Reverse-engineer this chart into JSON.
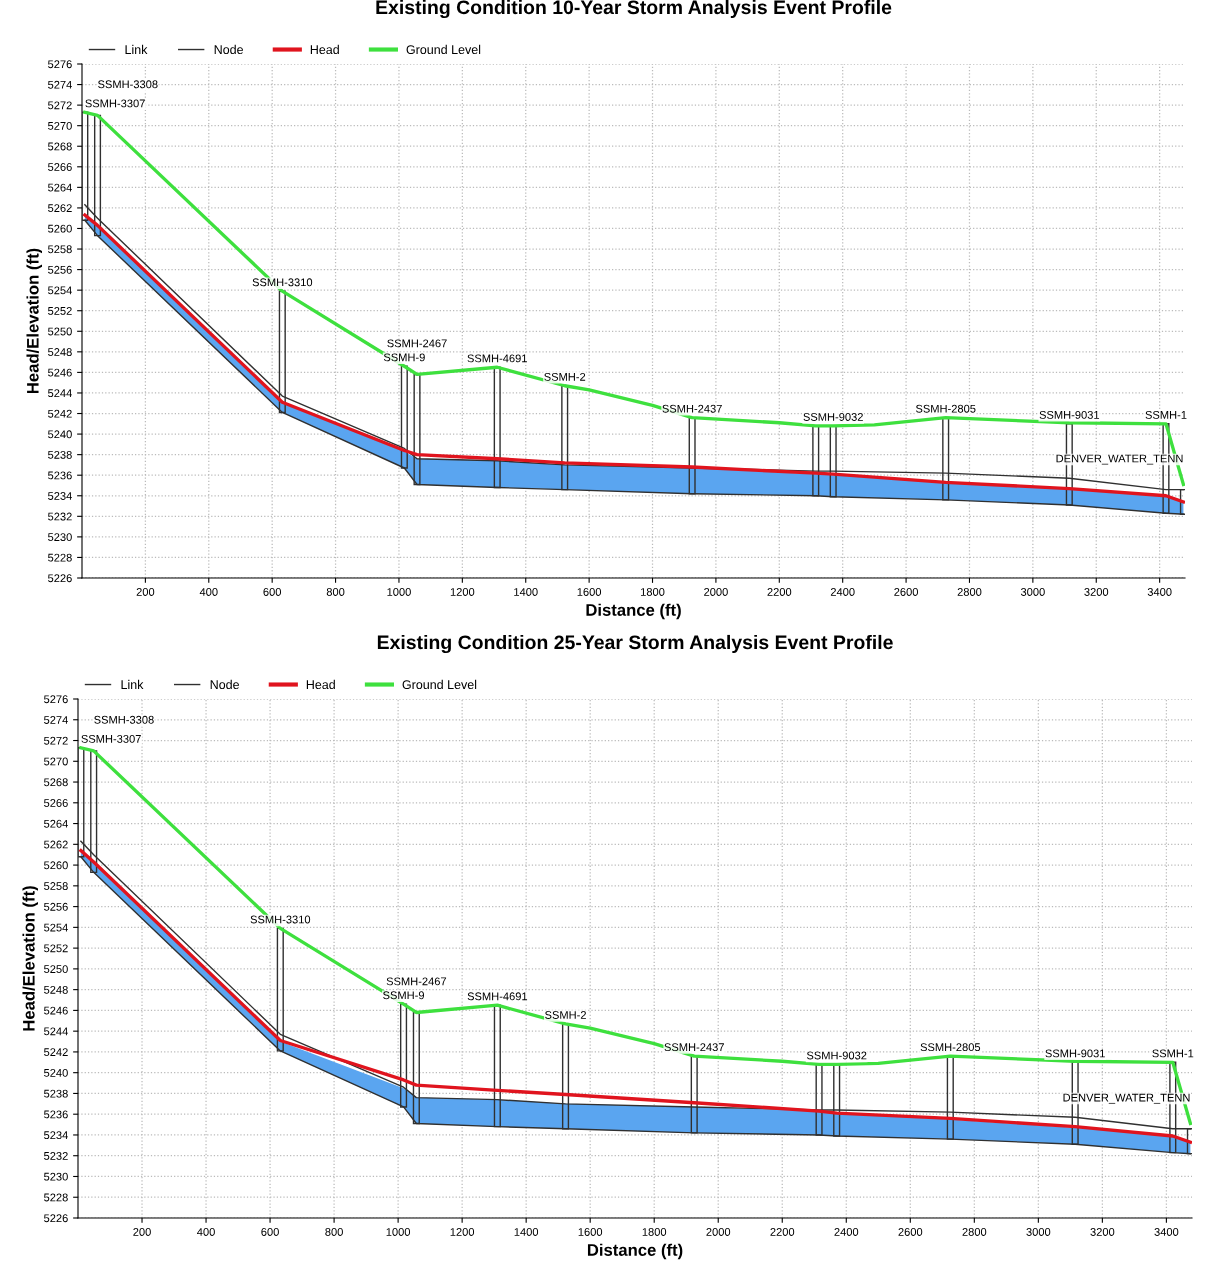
{
  "chart_data": [
    {
      "type": "line",
      "title": "Existing Condition 10-Year Storm Analysis Event Profile",
      "xlabel": "Distance (ft)",
      "ylabel": "Head/Elevation (ft)",
      "x": [
        9,
        49,
        632,
        1017,
        1057,
        1310,
        1523,
        1925,
        2315,
        2370,
        2725,
        3115,
        3420,
        3475
      ],
      "series": [
        {
          "color": "#303030",
          "values": [
            5260.8,
            5259.3,
            5242.1,
            5236.7,
            5235.1,
            5234.8,
            5234.6,
            5234.2,
            5234.0,
            5233.9,
            5233.6,
            5233.1,
            5232.3,
            5232.2
          ],
          "lower": [
            5260.8,
            5259.3,
            5242.1,
            5236.7,
            5235.1,
            5234.8,
            5234.6,
            5234.2,
            5234.0,
            5233.9,
            5233.6,
            5233.1,
            5232.3,
            5232.2
          ],
          "upper": [
            5261.2,
            5260.2,
            5243.0,
            5238.3,
            5237.6,
            5237.4,
            5237.0,
            5236.7,
            5236.1,
            5236.0,
            5235.3,
            5234.6,
            5233.9,
            5233.4
          ]
        },
        {
          "name": "Link",
          "color": "#303030",
          "values": [
            5262.3,
            5261.0,
            5243.7,
            5238.6,
            5237.6,
            5237.4,
            5237.0,
            5236.7,
            5236.4,
            5236.4,
            5236.2,
            5235.7,
            5234.6,
            5234.6
          ]
        },
        {
          "name": "Node",
          "type": "bar",
          "color": "#303030",
          "base": [
            5260.8,
            5259.3,
            5242.1,
            5236.7,
            5235.1,
            5234.8,
            5234.6,
            5234.2,
            5234.0,
            5233.9,
            5233.6,
            5233.1,
            5232.3,
            5232.2
          ],
          "values": [
            10.5,
            11.7,
            11.8,
            9.9,
            10.7,
            11.7,
            10.1,
            7.4,
            6.8,
            6.9,
            8.0,
            7.9,
            8.7,
            2.4
          ]
        },
        {
          "name": "Head",
          "color": "#e0141e",
          "values": [
            5261.3,
            5260.3,
            5243.1,
            5238.4,
            5238.0,
            5237.6,
            5237.2,
            5236.8,
            5236.2,
            5236.1,
            5235.3,
            5234.7,
            5234.0,
            5233.4
          ]
        },
        {
          "name": "Ground Level",
          "color": "#3ee03e",
          "x": [
            9,
            49,
            632,
            1017,
            1057,
            1310,
            1523,
            1600,
            1800,
            1925,
            2200,
            2315,
            2370,
            2500,
            2725,
            3115,
            3420,
            3475
          ],
          "values": [
            5271.3,
            5271.0,
            5253.9,
            5246.6,
            5245.8,
            5246.5,
            5244.7,
            5244.3,
            5242.8,
            5241.6,
            5241.1,
            5240.8,
            5240.8,
            5240.9,
            5241.6,
            5241.1,
            5241.0,
            5235.1
          ]
        }
      ],
      "annotations": [
        {
          "text": "SSMH-3307",
          "x": 9,
          "y": 5271.3
        },
        {
          "text": "SSMH-3308",
          "x": 49,
          "y": 5271.0
        },
        {
          "text": "SSMH-3310",
          "x": 632,
          "y": 5253.9
        },
        {
          "text": "SSMH-9",
          "x": 1017,
          "y": 5246.6
        },
        {
          "text": "SSMH-2467",
          "x": 1057,
          "y": 5245.8
        },
        {
          "text": "SSMH-4691",
          "x": 1310,
          "y": 5246.5
        },
        {
          "text": "SSMH-2",
          "x": 1523,
          "y": 5244.7
        },
        {
          "text": "SSMH-2437",
          "x": 1925,
          "y": 5241.6
        },
        {
          "text": "SSMH-9032",
          "x": 2370,
          "y": 5240.8
        },
        {
          "text": "SSMH-2805",
          "x": 2725,
          "y": 5241.6
        },
        {
          "text": "SSMH-9031",
          "x": 3115,
          "y": 5241.0
        },
        {
          "text": "SSMH-1",
          "x": 3420,
          "y": 5241.0
        },
        {
          "text": "DENVER_WATER_TENN",
          "x": 3475,
          "y": 5234.6
        }
      ],
      "xlim": [
        0,
        3480
      ],
      "xticks": [
        200,
        400,
        600,
        800,
        1000,
        1200,
        1400,
        1600,
        1800,
        2000,
        2200,
        2400,
        2600,
        2800,
        3000,
        3200,
        3400
      ],
      "ylim": [
        5226,
        5276
      ],
      "yticks": [
        5226,
        5228,
        5230,
        5232,
        5234,
        5236,
        5238,
        5240,
        5242,
        5244,
        5246,
        5248,
        5250,
        5252,
        5254,
        5256,
        5258,
        5260,
        5262,
        5264,
        5266,
        5268,
        5270,
        5272,
        5274,
        5276
      ],
      "grid": true,
      "legend": "top left"
    },
    {
      "type": "line",
      "title": "Existing Condition 25-Year Storm Analysis Event Profile",
      "xlabel": "Distance (ft)",
      "ylabel": "Head/Elevation (ft)",
      "x": [
        9,
        49,
        632,
        1017,
        1057,
        1310,
        1523,
        1925,
        2315,
        2370,
        2725,
        3115,
        3420,
        3475
      ],
      "series": [
        {
          "color": "#303030",
          "values": [
            5260.8,
            5259.3,
            5242.1,
            5236.7,
            5235.1,
            5234.8,
            5234.6,
            5234.2,
            5234.0,
            5233.9,
            5233.6,
            5233.1,
            5232.3,
            5232.2
          ],
          "lower": [
            5260.8,
            5259.3,
            5242.1,
            5236.7,
            5235.1,
            5234.8,
            5234.6,
            5234.2,
            5234.0,
            5233.9,
            5233.6,
            5233.1,
            5232.3,
            5232.2
          ],
          "upper": [
            5261.2,
            5260.2,
            5243.0,
            5238.5,
            5237.6,
            5237.4,
            5237.0,
            5236.7,
            5236.3,
            5236.1,
            5235.5,
            5234.7,
            5233.9,
            5233.3
          ]
        },
        {
          "name": "Link",
          "color": "#303030",
          "values": [
            5262.3,
            5261.0,
            5243.7,
            5238.6,
            5237.6,
            5237.4,
            5237.0,
            5236.7,
            5236.4,
            5236.4,
            5236.2,
            5235.7,
            5234.6,
            5234.6
          ]
        },
        {
          "name": "Node",
          "type": "bar",
          "color": "#303030",
          "base": [
            5260.8,
            5259.3,
            5242.1,
            5236.7,
            5235.1,
            5234.8,
            5234.6,
            5234.2,
            5234.0,
            5233.9,
            5233.6,
            5233.1,
            5232.3,
            5232.2
          ],
          "values": [
            10.5,
            11.7,
            11.8,
            9.9,
            10.7,
            11.7,
            10.1,
            7.4,
            6.8,
            6.9,
            8.0,
            7.9,
            8.7,
            2.4
          ]
        },
        {
          "name": "Head",
          "color": "#e0141e",
          "values": [
            5261.4,
            5260.3,
            5243.1,
            5239.3,
            5238.8,
            5238.3,
            5237.9,
            5237.1,
            5236.3,
            5236.1,
            5235.6,
            5234.8,
            5233.9,
            5233.3
          ]
        },
        {
          "name": "Ground Level",
          "color": "#3ee03e",
          "x": [
            9,
            49,
            632,
            1017,
            1057,
            1310,
            1523,
            1600,
            1800,
            1925,
            2200,
            2315,
            2370,
            2500,
            2725,
            3115,
            3420,
            3475
          ],
          "values": [
            5271.3,
            5271.0,
            5253.9,
            5246.6,
            5245.8,
            5246.5,
            5244.7,
            5244.3,
            5242.8,
            5241.6,
            5241.1,
            5240.8,
            5240.8,
            5240.9,
            5241.6,
            5241.1,
            5241.0,
            5235.1
          ]
        }
      ],
      "annotations": [
        {
          "text": "SSMH-3307",
          "x": 9,
          "y": 5271.3
        },
        {
          "text": "SSMH-3308",
          "x": 49,
          "y": 5271.0
        },
        {
          "text": "SSMH-3310",
          "x": 632,
          "y": 5253.9
        },
        {
          "text": "SSMH-9",
          "x": 1017,
          "y": 5246.6
        },
        {
          "text": "SSMH-2467",
          "x": 1057,
          "y": 5245.8
        },
        {
          "text": "SSMH-4691",
          "x": 1310,
          "y": 5246.5
        },
        {
          "text": "SSMH-2",
          "x": 1523,
          "y": 5244.7
        },
        {
          "text": "SSMH-2437",
          "x": 1925,
          "y": 5241.6
        },
        {
          "text": "SSMH-9032",
          "x": 2370,
          "y": 5240.8
        },
        {
          "text": "SSMH-2805",
          "x": 2725,
          "y": 5241.6
        },
        {
          "text": "SSMH-9031",
          "x": 3115,
          "y": 5241.0
        },
        {
          "text": "SSMH-1",
          "x": 3420,
          "y": 5241.0
        },
        {
          "text": "DENVER_WATER_TENN",
          "x": 3475,
          "y": 5234.6
        }
      ],
      "xlim": [
        0,
        3480
      ],
      "xticks": [
        200,
        400,
        600,
        800,
        1000,
        1200,
        1400,
        1600,
        1800,
        2000,
        2200,
        2400,
        2600,
        2800,
        3000,
        3200,
        3400
      ],
      "ylim": [
        5226,
        5276
      ],
      "yticks": [
        5226,
        5228,
        5230,
        5232,
        5234,
        5236,
        5238,
        5240,
        5242,
        5244,
        5246,
        5248,
        5250,
        5252,
        5254,
        5256,
        5258,
        5260,
        5262,
        5264,
        5266,
        5268,
        5270,
        5272,
        5274,
        5276
      ],
      "grid": true,
      "legend": "top left"
    }
  ]
}
